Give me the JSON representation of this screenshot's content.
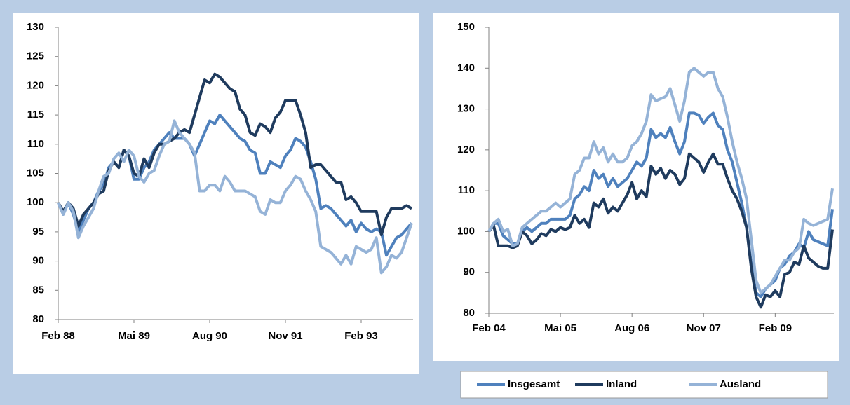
{
  "chart_data": [
    {
      "type": "line",
      "categories": [
        "Feb 88",
        null,
        null,
        null,
        null,
        null,
        null,
        null,
        null,
        null,
        null,
        null,
        null,
        null,
        null,
        "Mai 89",
        null,
        null,
        null,
        null,
        null,
        null,
        null,
        null,
        null,
        null,
        null,
        null,
        null,
        null,
        "Aug 90",
        null,
        null,
        null,
        null,
        null,
        null,
        null,
        null,
        null,
        null,
        null,
        null,
        null,
        null,
        "Nov 91",
        null,
        null,
        null,
        null,
        null,
        null,
        null,
        null,
        null,
        null,
        null,
        null,
        null,
        null,
        "Feb 93",
        null,
        null,
        null,
        null,
        null,
        null,
        null,
        null,
        null,
        null
      ],
      "ylim": [
        80,
        130
      ],
      "yticks": [
        80,
        85,
        90,
        95,
        100,
        105,
        110,
        115,
        120,
        125,
        130
      ],
      "series": [
        {
          "color": "#4f81bd",
          "values": [
            100,
            98,
            100,
            98,
            95,
            97,
            99,
            100,
            102,
            103,
            106,
            107,
            106,
            109,
            108,
            104,
            104,
            106,
            107,
            109,
            110,
            111,
            112,
            111,
            111,
            111,
            110,
            108,
            110,
            112,
            114,
            113.5,
            115,
            114,
            113,
            112,
            111,
            110.5,
            109,
            108.5,
            105,
            105,
            107,
            106.5,
            106,
            108,
            109,
            111,
            110.5,
            109.5,
            107,
            104,
            99,
            99.5,
            99,
            98,
            97,
            96,
            97,
            95,
            96.5,
            95.5,
            95,
            95.5,
            95,
            91,
            92.5,
            94,
            94.5,
            95.5,
            96.5
          ]
        },
        {
          "color": "#1f3b5e",
          "values": [
            100,
            98.5,
            100,
            99,
            96,
            98,
            99,
            100,
            101.5,
            102,
            105.5,
            107,
            106,
            109,
            108,
            105,
            104.5,
            107.5,
            106,
            108.5,
            110,
            110,
            110.5,
            111,
            112,
            112.5,
            112,
            115,
            118,
            121,
            120.5,
            122,
            121.5,
            120.5,
            119.5,
            119,
            116,
            115,
            112,
            111.5,
            113.5,
            113,
            112,
            114.5,
            115.5,
            117.5,
            117.5,
            117.5,
            115,
            112,
            106,
            106.5,
            106.5,
            105.5,
            104.5,
            103.5,
            103.5,
            100.5,
            101,
            100,
            98.5,
            98.5,
            98.5,
            98.5,
            94.5,
            97.5,
            99,
            99,
            99,
            99.5,
            99
          ]
        },
        {
          "color": "#95b3d7",
          "values": [
            100,
            98,
            100,
            98.5,
            94,
            96,
            97.5,
            99,
            102,
            104.5,
            105,
            107.5,
            108.5,
            107,
            109,
            108,
            104.5,
            103.5,
            105,
            105.5,
            108,
            110,
            110.5,
            114,
            112,
            111,
            110,
            108.5,
            102,
            102,
            103,
            103,
            102,
            104.5,
            103.5,
            102,
            102,
            102,
            101.5,
            101,
            98.5,
            98,
            100.5,
            100,
            100,
            102,
            103,
            104.5,
            104,
            102,
            100.5,
            98.5,
            92.5,
            92,
            91.5,
            90.5,
            89.5,
            91,
            89.5,
            92.5,
            92,
            91.5,
            92,
            94,
            88,
            89,
            91,
            90.5,
            91.5,
            94,
            96.5
          ]
        }
      ]
    },
    {
      "type": "line",
      "categories": [
        "Feb 04",
        null,
        null,
        null,
        null,
        null,
        null,
        null,
        null,
        null,
        null,
        null,
        null,
        null,
        null,
        "Mai 05",
        null,
        null,
        null,
        null,
        null,
        null,
        null,
        null,
        null,
        null,
        null,
        null,
        null,
        null,
        "Aug 06",
        null,
        null,
        null,
        null,
        null,
        null,
        null,
        null,
        null,
        null,
        null,
        null,
        null,
        null,
        "Nov 07",
        null,
        null,
        null,
        null,
        null,
        null,
        null,
        null,
        null,
        null,
        null,
        null,
        null,
        null,
        "Feb 09",
        null,
        null,
        null,
        null,
        null,
        null,
        null,
        null,
        null,
        null,
        null,
        null
      ],
      "ylim": [
        80,
        150
      ],
      "yticks": [
        80,
        90,
        100,
        110,
        120,
        130,
        140,
        150
      ],
      "legend": "bottom",
      "series": [
        {
          "name": "Insgesamt",
          "color": "#4f81bd",
          "values": [
            100,
            102,
            102,
            99,
            98,
            97,
            97,
            100,
            101,
            100,
            101,
            102,
            102,
            103,
            103,
            103,
            103,
            104,
            108,
            109,
            111,
            110,
            115,
            113,
            114,
            111,
            113,
            111,
            112,
            113,
            115,
            117,
            116,
            118,
            125,
            123,
            124,
            123,
            125.5,
            122,
            119,
            122,
            129,
            129,
            128.5,
            126.5,
            128,
            129,
            126,
            125,
            120,
            117,
            112,
            107,
            101,
            92,
            85,
            84,
            86,
            87,
            88,
            91,
            92,
            94,
            95,
            97,
            96,
            100,
            98,
            97.5,
            97,
            96.5,
            105.5
          ]
        },
        {
          "name": "Inland",
          "color": "#1f3b5e",
          "values": [
            100,
            101.5,
            96.5,
            96.5,
            96.5,
            96,
            96.5,
            100,
            99,
            97,
            98,
            99.5,
            99,
            100.5,
            100,
            101,
            100.5,
            101,
            104,
            102,
            103,
            101,
            107,
            106,
            108,
            104.5,
            106,
            105,
            107,
            109,
            112,
            108,
            110,
            108.5,
            116,
            114,
            115.5,
            113,
            115,
            114,
            111.5,
            113,
            119,
            118,
            117,
            114.5,
            117,
            119,
            116.5,
            116.5,
            113,
            110,
            108,
            105,
            101,
            91,
            84,
            81.5,
            84.5,
            84,
            85.5,
            84,
            89.5,
            90,
            92.5,
            92,
            96.5,
            93.5,
            92.5,
            91.5,
            91,
            91,
            100.5
          ]
        },
        {
          "name": "Ausland",
          "color": "#95b3d7",
          "values": [
            100,
            102,
            103,
            100,
            100.5,
            96.5,
            97,
            101,
            102,
            103,
            104,
            105,
            105,
            106,
            107,
            106,
            107,
            108,
            114,
            115,
            118,
            118,
            122,
            119,
            120.5,
            117,
            119,
            117,
            117,
            118,
            121,
            122,
            124,
            127,
            133.5,
            132,
            132.5,
            133,
            135,
            131,
            127,
            132,
            139,
            140,
            139,
            138,
            139,
            139,
            135,
            133,
            128,
            122,
            117,
            113,
            108,
            98,
            88,
            85,
            86,
            87,
            89,
            91,
            93,
            93,
            95,
            96,
            103,
            102,
            101.5,
            102,
            102.5,
            103,
            110.5
          ]
        }
      ]
    }
  ]
}
